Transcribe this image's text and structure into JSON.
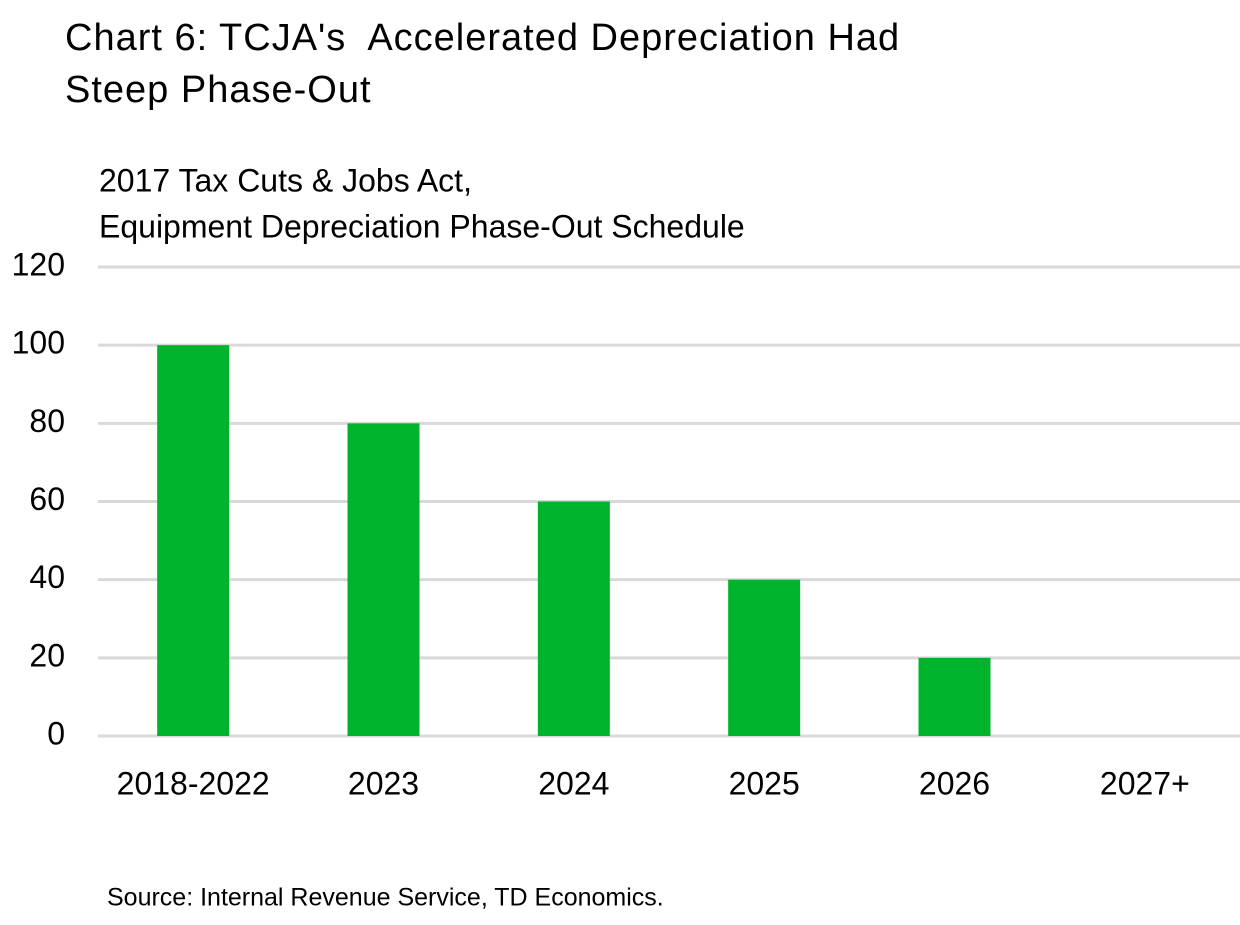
{
  "chart_data": {
    "type": "bar",
    "title": [
      "Chart 6: TCJA's  Accelerated Depreciation Had",
      "Steep Phase-Out"
    ],
    "subtitle": [
      "2017 Tax Cuts & Jobs Act,",
      "Equipment Depreciation Phase-Out Schedule"
    ],
    "categories": [
      "2018-2022",
      "2023",
      "2024",
      "2025",
      "2026",
      "2027+"
    ],
    "values": [
      100,
      80,
      60,
      40,
      20,
      0
    ],
    "color": "#00b32c",
    "ylim": [
      0,
      120
    ],
    "yticks": [
      0,
      20,
      40,
      60,
      80,
      100,
      120
    ],
    "grid": true,
    "source": "Source: Internal Revenue Service, TD Economics."
  }
}
